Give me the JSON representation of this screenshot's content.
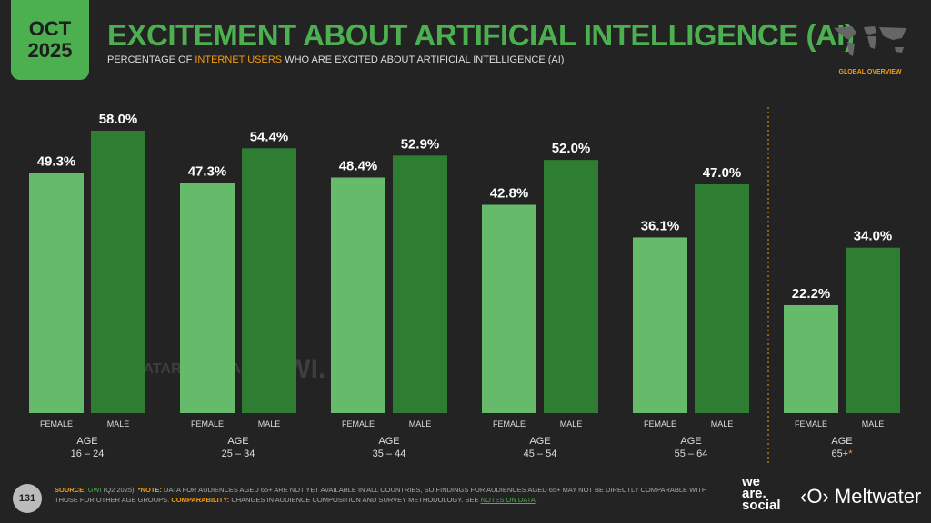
{
  "header": {
    "month": "OCT",
    "year": "2025",
    "title": "EXCITEMENT ABOUT ARTIFICIAL INTELLIGENCE (AI)",
    "subtitle_pre": "PERCENTAGE OF ",
    "subtitle_hl": "INTERNET USERS",
    "subtitle_post": " WHO ARE EXCITED ABOUT ARTIFICIAL INTELLIGENCE (AI)",
    "region": "GLOBAL OVERVIEW"
  },
  "colors": {
    "female": "#66bb6a",
    "male": "#2e7d32",
    "accent": "#f39c12",
    "title": "#4caf50"
  },
  "watermark": {
    "a": "DATAREPORTAL",
    "b": "GWI."
  },
  "chart_data": {
    "type": "bar",
    "title": "EXCITEMENT ABOUT ARTIFICIAL INTELLIGENCE (AI)",
    "ylim": [
      0,
      60
    ],
    "categories": [
      "AGE 16 – 24",
      "AGE 25 – 34",
      "AGE 35 – 44",
      "AGE 45 – 54",
      "AGE 55 – 64",
      "AGE 65+*"
    ],
    "series": [
      {
        "name": "FEMALE",
        "values": [
          49.3,
          47.3,
          48.4,
          42.8,
          36.1,
          22.2
        ]
      },
      {
        "name": "MALE",
        "values": [
          58.0,
          54.4,
          52.9,
          52.0,
          47.0,
          34.0
        ]
      }
    ]
  },
  "footer": {
    "page": "131",
    "source_label": "SOURCE:",
    "source": "GWI",
    "source_rest": " (Q2 2025). ",
    "note_label": "*NOTE:",
    "note": " DATA FOR AUDIENCES AGED 65+ ARE NOT YET AVAILABLE IN ALL COUNTRIES, SO FINDINGS FOR AUDIENCES AGED 65+ MAY NOT BE DIRECTLY COMPARABLE WITH THOSE FOR OTHER AGE GROUPS. ",
    "comp_label": "COMPARABILITY:",
    "comp": " CHANGES IN AUDIENCE COMPOSITION AND SURVEY METHODOLOGY. SEE ",
    "notes_link": "NOTES ON DATA",
    "notes_end": ".",
    "brand1": "we are. social",
    "brand2": "Meltwater"
  }
}
